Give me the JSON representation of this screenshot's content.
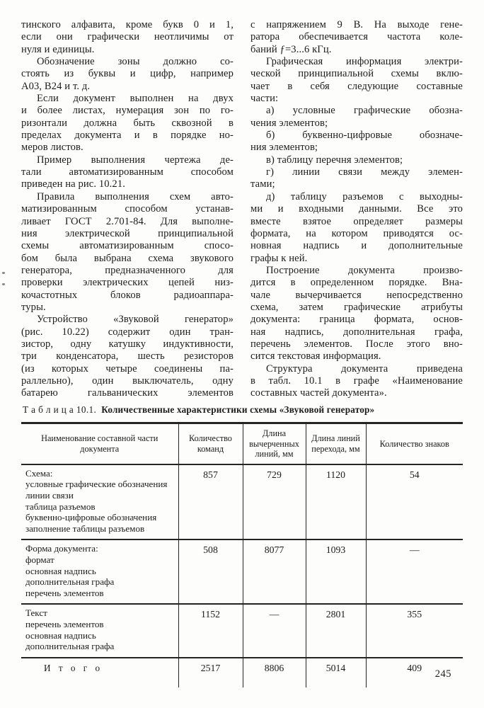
{
  "document": {
    "left_column": {
      "paragraphs": [
        {
          "indent": false,
          "cont": false,
          "lines": [
            "тинского алфавита, кроме букв 0 и 1,",
            "если они графически неотличимы от",
            "нуля и единицы."
          ]
        },
        {
          "indent": true,
          "cont": false,
          "lines": [
            "Обозначение зоны должно со-",
            "стоять из буквы и цифр, например",
            "А03, В24 и т. д."
          ]
        },
        {
          "indent": true,
          "cont": false,
          "lines": [
            "Если документ выполнен на двух",
            "и более листах, нумерация зон по го-",
            "ризонтали должна быть сквозной в",
            "пределах документа и в порядке но-",
            "меров листов."
          ]
        },
        {
          "indent": true,
          "cont": false,
          "lines": [
            "Пример выполнения чертежа де-",
            "тали автоматизированным способом",
            "приведен на рис. 10.21."
          ]
        },
        {
          "indent": true,
          "cont": false,
          "lines": [
            "Правила выполнения схем авто-",
            "матизированным способом устанав-",
            "ливает ГОСТ 2.701-84. Для выполне-",
            "ния электрической принципиальной",
            "схемы автоматизированным спосо-",
            "бом была выбрана схема звукового",
            "генератора, предназначенного для",
            "проверки электрических цепей низ-",
            "кочастотных блоков радиоаппара-",
            "туры."
          ]
        },
        {
          "indent": true,
          "cont": true,
          "lines": [
            "Устройство «Звуковой генератор»",
            "(рис. 10.22) содержит один тран-",
            "зистор, одну катушку индуктивности,",
            "три конденсатора, шесть резисторов",
            "(из которых четыре соединены па-",
            "раллельно), один выключатель, одну",
            "батарею гальванических элементов"
          ]
        }
      ]
    },
    "right_column": {
      "paragraphs": [
        {
          "indent": false,
          "cont": false,
          "lines": [
            "с напряжением 9 В. На выходе гене-",
            "ратора обеспечивается частота коле-",
            "баний ƒ=3...6 кГц."
          ]
        },
        {
          "indent": true,
          "cont": false,
          "lines": [
            "Графическая информация электри-",
            "ческой принципиальной схемы вклю-",
            "чает в себя следующие составные",
            "части:"
          ]
        },
        {
          "indent": true,
          "cont": false,
          "lines": [
            "а) условные графические обозна-",
            "чения элементов;"
          ]
        },
        {
          "indent": true,
          "cont": false,
          "lines": [
            "б) буквенно-цифровые обозначе-",
            "ния элементов;"
          ]
        },
        {
          "indent": true,
          "cont": false,
          "lines": [
            "в) таблицу перечня элементов;"
          ]
        },
        {
          "indent": true,
          "cont": false,
          "lines": [
            "г) линии связи между элемен-",
            "тами;"
          ]
        },
        {
          "indent": true,
          "cont": false,
          "lines": [
            "д) таблицу разъемов с выходны-",
            "ми и входными данными. Все это",
            "вместе взятое определяет размеры",
            "формата, на котором приводятся ос-",
            "новная надпись и дополнительные",
            "графы к ней."
          ]
        },
        {
          "indent": true,
          "cont": false,
          "lines": [
            "Построение документа произво-",
            "дится в определенном порядке. Вна-",
            "чале вычерчивается непосредственно",
            "схема, затем графические атрибуты",
            "документа: граница формата, основ-",
            "ная надпись, дополнительная графа,",
            "перечень элементов. После этого вно-",
            "сится текстовая информация."
          ]
        },
        {
          "indent": true,
          "cont": false,
          "lines": [
            "Структура документа приведена",
            "в табл. 10.1 в графе «Наименование",
            "составных частей документа»."
          ]
        }
      ]
    },
    "table": {
      "caption_label": "Т а б л и ц а  10.1.",
      "caption_title": "Количественные характеристики схемы «Звуковой генератор»",
      "headers": [
        "Наименование составной части документа",
        "Количество команд",
        "Длина вычерченных линий, мм",
        "Длина линий перехода, мм",
        "Количество знаков"
      ],
      "rows": [
        {
          "name_lines": [
            "Схема:",
            "условные графические обозначения",
            "линии связи",
            "таблица разъемов",
            "буквенно-цифровые обозначения",
            "заполнение таблицы разъемов"
          ],
          "values": [
            "857",
            "729",
            "1120",
            "54"
          ]
        },
        {
          "name_lines": [
            "Форма документа:",
            "формат",
            "основная надпись",
            "дополнительная графа",
            "перечень элементов"
          ],
          "values": [
            "508",
            "8077",
            "1093",
            "—"
          ]
        },
        {
          "name_lines": [
            "Текст",
            "перечень элементов",
            "основная надпись",
            "дополнительная графа"
          ],
          "values": [
            "1152",
            "—",
            "2801",
            "355"
          ]
        }
      ],
      "total": {
        "label": "И т о г о",
        "values": [
          "2517",
          "8806",
          "5014",
          "409"
        ]
      }
    },
    "page_number": "245"
  }
}
